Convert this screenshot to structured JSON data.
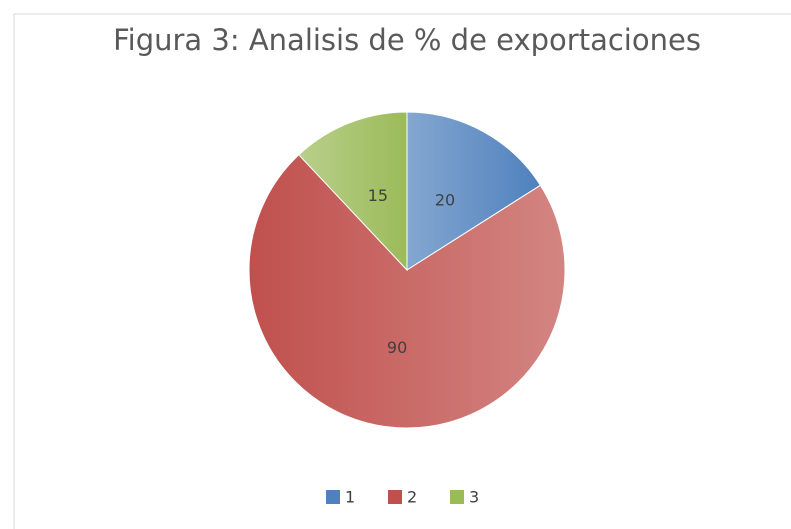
{
  "chart_data": {
    "type": "pie",
    "title": "Figura 3: Analisis de % de exportaciones",
    "categories": [
      "1",
      "2",
      "3"
    ],
    "values": [
      20,
      90,
      15
    ],
    "colors": [
      "#4f81bd",
      "#c0504d",
      "#9bbb59"
    ],
    "legend": "bottom"
  }
}
